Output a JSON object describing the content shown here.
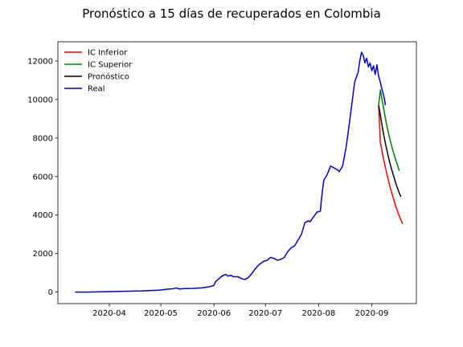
{
  "chart_data": {
    "type": "line",
    "title": "Pronóstico a 15 días de recuperados en Colombia",
    "xlabel": "",
    "ylabel": "",
    "x_ticks": [
      "2020-04",
      "2020-05",
      "2020-06",
      "2020-07",
      "2020-08",
      "2020-09"
    ],
    "x_tick_dates": [
      "2020-04-01",
      "2020-05-01",
      "2020-06-01",
      "2020-07-01",
      "2020-08-01",
      "2020-09-01"
    ],
    "y_ticks": [
      0,
      2000,
      4000,
      6000,
      8000,
      10000,
      12000
    ],
    "xlim": [
      "2020-03-02",
      "2020-09-27"
    ],
    "ylim": [
      -600,
      13000
    ],
    "grid": false,
    "legend_position": "top-left",
    "series": [
      {
        "name": "IC Inferior",
        "color": "#ff0000",
        "points": [
          [
            "2020-09-05",
            9700
          ],
          [
            "2020-09-06",
            7800
          ],
          [
            "2020-09-07",
            7300
          ],
          [
            "2020-09-08",
            6850
          ],
          [
            "2020-09-09",
            6450
          ],
          [
            "2020-09-10",
            6050
          ],
          [
            "2020-09-11",
            5700
          ],
          [
            "2020-09-12",
            5350
          ],
          [
            "2020-09-13",
            5050
          ],
          [
            "2020-09-14",
            4750
          ],
          [
            "2020-09-15",
            4450
          ],
          [
            "2020-09-16",
            4200
          ],
          [
            "2020-09-17",
            3950
          ],
          [
            "2020-09-18",
            3750
          ],
          [
            "2020-09-19",
            3550
          ]
        ]
      },
      {
        "name": "IC Superior",
        "color": "#008000",
        "points": [
          [
            "2020-09-05",
            9700
          ],
          [
            "2020-09-06",
            10500
          ],
          [
            "2020-09-07",
            10000
          ],
          [
            "2020-09-08",
            9500
          ],
          [
            "2020-09-09",
            9000
          ],
          [
            "2020-09-10",
            8550
          ],
          [
            "2020-09-11",
            8150
          ],
          [
            "2020-09-12",
            7800
          ],
          [
            "2020-09-13",
            7450
          ],
          [
            "2020-09-14",
            7150
          ],
          [
            "2020-09-15",
            6850
          ],
          [
            "2020-09-16",
            6600
          ],
          [
            "2020-09-17",
            6300
          ]
        ]
      },
      {
        "name": "Pronóstico",
        "color": "#000000",
        "points": [
          [
            "2020-09-05",
            9700
          ],
          [
            "2020-09-06",
            9200
          ],
          [
            "2020-09-07",
            8650
          ],
          [
            "2020-09-08",
            8150
          ],
          [
            "2020-09-09",
            7700
          ],
          [
            "2020-09-10",
            7300
          ],
          [
            "2020-09-11",
            6900
          ],
          [
            "2020-09-12",
            6550
          ],
          [
            "2020-09-13",
            6250
          ],
          [
            "2020-09-14",
            5950
          ],
          [
            "2020-09-15",
            5650
          ],
          [
            "2020-09-16",
            5400
          ],
          [
            "2020-09-17",
            5150
          ],
          [
            "2020-09-18",
            4950
          ]
        ]
      },
      {
        "name": "Real",
        "color": "#0000cd",
        "points": [
          [
            "2020-03-12",
            0
          ],
          [
            "2020-03-20",
            0
          ],
          [
            "2020-03-31",
            20
          ],
          [
            "2020-04-10",
            40
          ],
          [
            "2020-04-20",
            60
          ],
          [
            "2020-04-30",
            100
          ],
          [
            "2020-05-05",
            150
          ],
          [
            "2020-05-08",
            170
          ],
          [
            "2020-05-10",
            210
          ],
          [
            "2020-05-12",
            160
          ],
          [
            "2020-05-15",
            180
          ],
          [
            "2020-05-20",
            190
          ],
          [
            "2020-05-25",
            220
          ],
          [
            "2020-05-28",
            260
          ],
          [
            "2020-05-30",
            290
          ],
          [
            "2020-06-01",
            350
          ],
          [
            "2020-06-02",
            550
          ],
          [
            "2020-06-04",
            700
          ],
          [
            "2020-06-06",
            850
          ],
          [
            "2020-06-08",
            920
          ],
          [
            "2020-06-09",
            830
          ],
          [
            "2020-06-11",
            870
          ],
          [
            "2020-06-12",
            800
          ],
          [
            "2020-06-15",
            800
          ],
          [
            "2020-06-17",
            700
          ],
          [
            "2020-06-19",
            650
          ],
          [
            "2020-06-21",
            750
          ],
          [
            "2020-06-23",
            950
          ],
          [
            "2020-06-25",
            1200
          ],
          [
            "2020-06-27",
            1400
          ],
          [
            "2020-06-30",
            1600
          ],
          [
            "2020-07-02",
            1650
          ],
          [
            "2020-07-04",
            1800
          ],
          [
            "2020-07-06",
            1750
          ],
          [
            "2020-07-08",
            1650
          ],
          [
            "2020-07-10",
            1700
          ],
          [
            "2020-07-12",
            1800
          ],
          [
            "2020-07-14",
            2100
          ],
          [
            "2020-07-16",
            2300
          ],
          [
            "2020-07-18",
            2400
          ],
          [
            "2020-07-20",
            2700
          ],
          [
            "2020-07-22",
            3000
          ],
          [
            "2020-07-24",
            3600
          ],
          [
            "2020-07-26",
            3700
          ],
          [
            "2020-07-27",
            3650
          ],
          [
            "2020-07-29",
            3900
          ],
          [
            "2020-07-31",
            4150
          ],
          [
            "2020-08-02",
            4200
          ],
          [
            "2020-08-03",
            5100
          ],
          [
            "2020-08-04",
            5800
          ],
          [
            "2020-08-06",
            6100
          ],
          [
            "2020-08-08",
            6550
          ],
          [
            "2020-08-10",
            6450
          ],
          [
            "2020-08-12",
            6350
          ],
          [
            "2020-08-13",
            6250
          ],
          [
            "2020-08-15",
            6550
          ],
          [
            "2020-08-17",
            7500
          ],
          [
            "2020-08-19",
            8800
          ],
          [
            "2020-08-21",
            10200
          ],
          [
            "2020-08-22",
            10900
          ],
          [
            "2020-08-24",
            11400
          ],
          [
            "2020-08-25",
            12000
          ],
          [
            "2020-08-26",
            12450
          ],
          [
            "2020-08-27",
            12300
          ],
          [
            "2020-08-28",
            11900
          ],
          [
            "2020-08-29",
            12150
          ],
          [
            "2020-08-30",
            11700
          ],
          [
            "2020-08-31",
            11900
          ],
          [
            "2020-09-01",
            11500
          ],
          [
            "2020-09-02",
            11750
          ],
          [
            "2020-09-03",
            11300
          ],
          [
            "2020-09-04",
            11800
          ],
          [
            "2020-09-05",
            11200
          ],
          [
            "2020-09-06",
            10900
          ],
          [
            "2020-09-07",
            10500
          ],
          [
            "2020-09-08",
            10200
          ],
          [
            "2020-09-09",
            9700
          ]
        ]
      }
    ]
  }
}
